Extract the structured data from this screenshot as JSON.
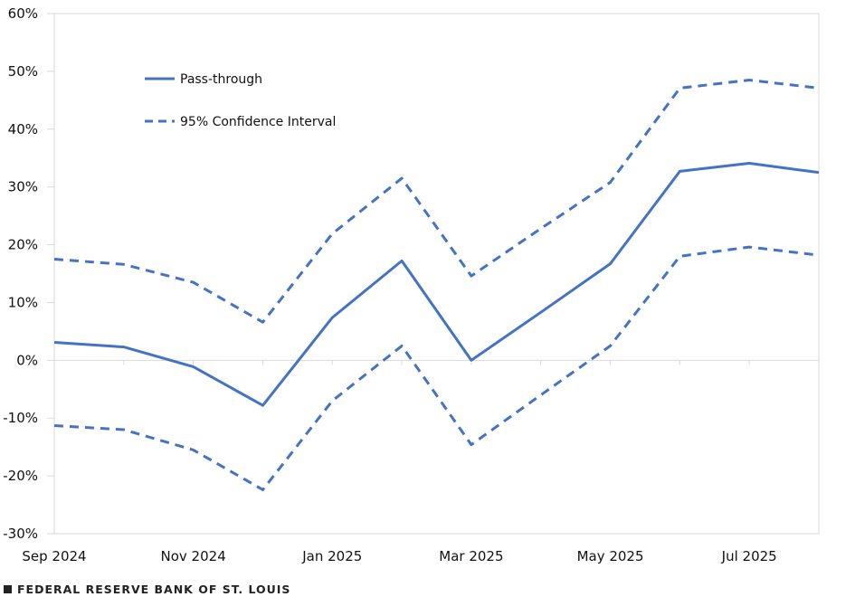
{
  "chart_data": {
    "type": "line",
    "title": "",
    "xlabel": "",
    "ylabel": "",
    "x": [
      "Sep 2024",
      "Oct 2024",
      "Nov 2024",
      "Dec 2024",
      "Jan 2025",
      "Feb 2025",
      "Mar 2025",
      "Apr 2025",
      "May 2025",
      "Jun 2025",
      "Jul 2025",
      "Aug 2025"
    ],
    "x_tick_labels": [
      "Sep 2024",
      "Nov 2024",
      "Jan 2025",
      "Mar 2025",
      "May 2025",
      "Jul 2025"
    ],
    "ylim": [
      -30,
      60
    ],
    "y_ticks": [
      -30,
      -20,
      -10,
      0,
      10,
      20,
      30,
      40,
      50,
      60
    ],
    "y_tick_labels": [
      "-30%",
      "-20%",
      "-10%",
      "0%",
      "10%",
      "20%",
      "30%",
      "40%",
      "50%",
      "60%"
    ],
    "grid": false,
    "legend_placement": "top-left",
    "series": [
      {
        "name": "Pass-through",
        "style": "solid",
        "color": "#4472C4",
        "values": [
          3.1,
          2.3,
          -1.1,
          -7.8,
          7.4,
          17.2,
          0.0,
          8.3,
          16.7,
          32.7,
          34.1,
          32.5
        ]
      },
      {
        "name": "95% Confidence Interval",
        "style": "dashed",
        "color": "#4472C4",
        "values": [
          17.5,
          16.6,
          13.5,
          6.6,
          21.9,
          31.5,
          14.6,
          22.8,
          30.8,
          47.1,
          48.5,
          47.1
        ]
      },
      {
        "name": "",
        "style": "dashed",
        "color": "#4472C4",
        "values": [
          -11.3,
          -12.0,
          -15.5,
          -22.4,
          -7.0,
          2.5,
          -14.6,
          -6.0,
          2.5,
          18.0,
          19.6,
          18.2
        ]
      }
    ]
  },
  "legend": {
    "solid": "Pass-through",
    "dashed": "95% Confidence Interval"
  },
  "footer": {
    "source": "FEDERAL RESERVE BANK OF ST. LOUIS"
  }
}
